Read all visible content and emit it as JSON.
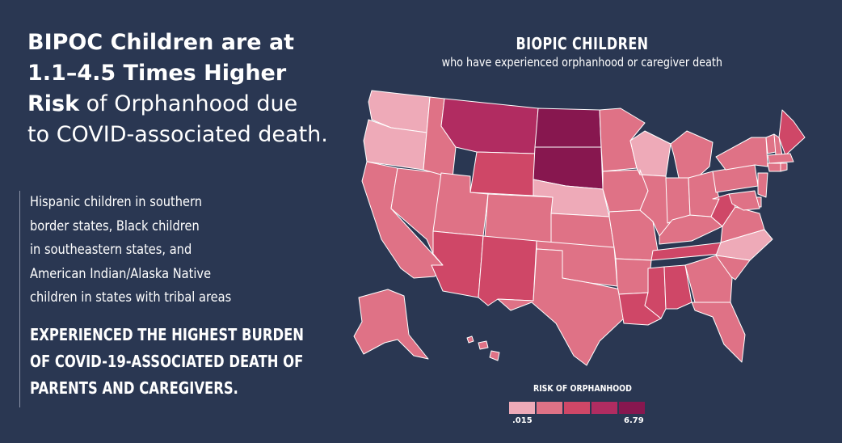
{
  "headline": {
    "line1": "BIPOC Children are at",
    "line2": "1.1–4.5 Times Higher",
    "line3_bold": "Risk",
    "line3_rest": " of Orphanhood due",
    "line4": "to COVID-associated death."
  },
  "sub": {
    "lines": [
      "Hispanic children in southern",
      "border states, Black children",
      "in southeastern states, and",
      "American Indian/Alaska Native",
      "children in states with tribal areas"
    ],
    "strong_lines": [
      "EXPERIENCED THE HIGHEST BURDEN",
      "OF COVID-19-ASSOCIATED DEATH OF",
      "PARENTS AND CAREGIVERS."
    ]
  },
  "map": {
    "title": "BIOPIC CHILDREN",
    "subtitle": "who have experienced orphanhood or caregiver death",
    "colors": [
      "#eeaab8",
      "#df7286",
      "#cf4767",
      "#b12c61",
      "#87174f"
    ],
    "states": {
      "WA": 1,
      "OR": 1,
      "CA": 2,
      "NV": 2,
      "ID": 2,
      "MT": 4,
      "WY": 3,
      "UT": 2,
      "AZ": 3,
      "CO": 2,
      "NM": 3,
      "ND": 5,
      "SD": 5,
      "NE": 1,
      "KS": 2,
      "OK": 2,
      "TX": 2,
      "MN": 2,
      "IA": 2,
      "MO": 2,
      "AR": 2,
      "LA": 3,
      "WI": 1,
      "IL": 2,
      "MS": 3,
      "MI": 2,
      "IN": 2,
      "KY": 2,
      "TN": 3,
      "AL": 3,
      "OH": 2,
      "WV": 3,
      "VA": 2,
      "NC": 1,
      "SC": 2,
      "GA": 2,
      "FL": 2,
      "PA": 2,
      "NY": 2,
      "ME": 3,
      "VT": 2,
      "NH": 2,
      "MA": 2,
      "CT": 2,
      "RI": 2,
      "NJ": 2,
      "DE": 2,
      "MD": 2,
      "AK": 2,
      "HI": 2
    }
  },
  "legend": {
    "title": "RISK OF ORPHANHOOD",
    "min_label": ".015",
    "max_label": "6.79",
    "colors": [
      "#eeaab8",
      "#df7286",
      "#cf4767",
      "#b12c61",
      "#87174f"
    ]
  }
}
